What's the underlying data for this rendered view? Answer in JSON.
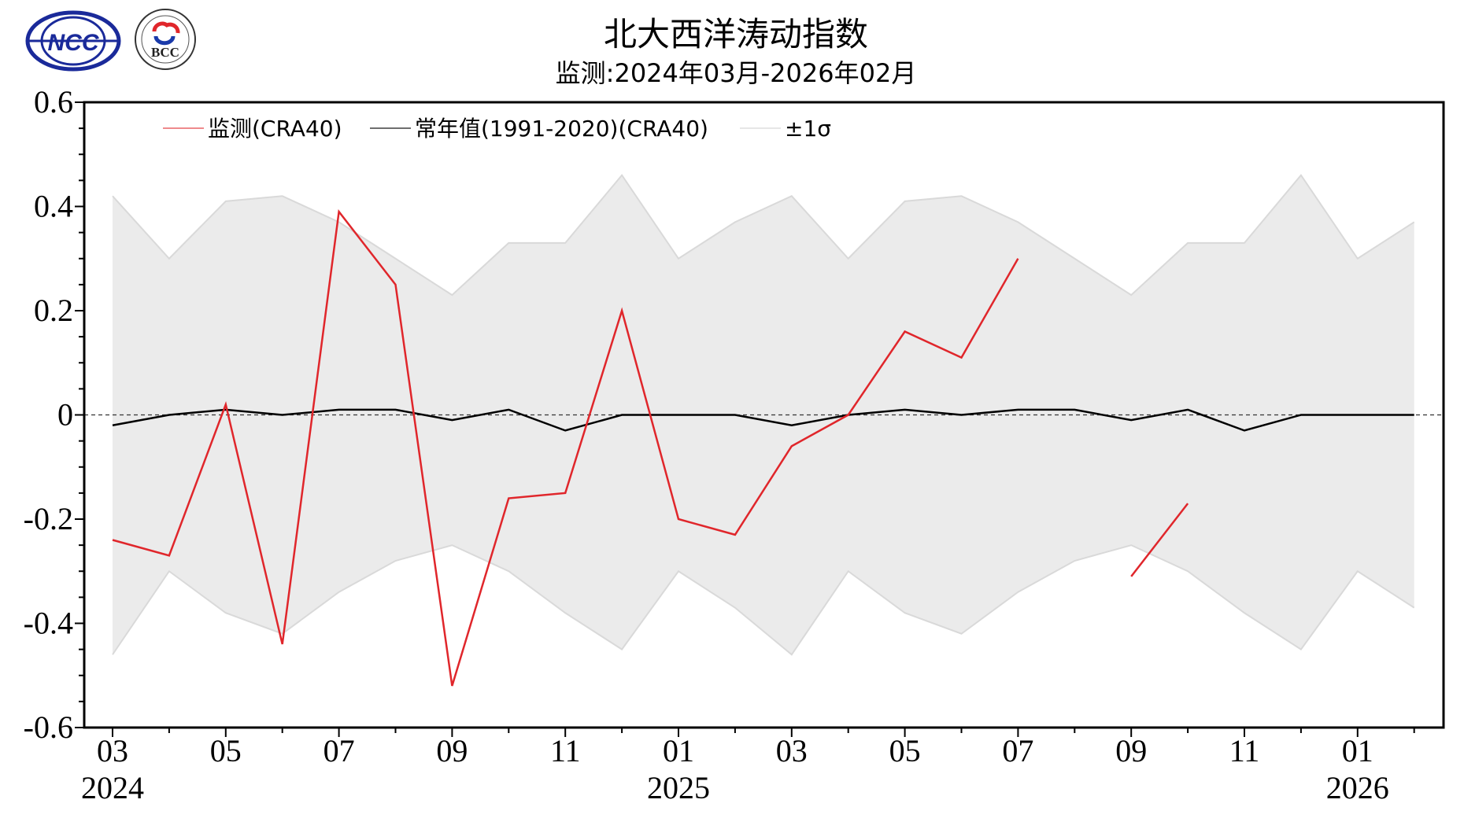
{
  "header": {
    "title": "北大西洋涛动指数",
    "subtitle": "监测:2024年03月-2026年02月",
    "logos": [
      "NCC",
      "BCC"
    ]
  },
  "chart_data": {
    "type": "line",
    "title": "北大西洋涛动指数",
    "subtitle": "监测:2024年03月-2026年02月",
    "xlabel": "",
    "ylabel": "",
    "ylim": [
      -0.6,
      0.6
    ],
    "yticks": [
      "0.6",
      "0.4",
      "0.2",
      "0",
      "-0.2",
      "-0.4",
      "-0.6"
    ],
    "yticks_values": [
      0.6,
      0.4,
      0.2,
      0,
      -0.2,
      -0.4,
      -0.6
    ],
    "x": [
      "2024-03",
      "2024-04",
      "2024-05",
      "2024-06",
      "2024-07",
      "2024-08",
      "2024-09",
      "2024-10",
      "2024-11",
      "2024-12",
      "2025-01",
      "2025-02",
      "2025-03",
      "2025-04",
      "2025-05",
      "2025-06",
      "2025-07",
      "2025-08",
      "2025-09",
      "2025-10",
      "2025-11",
      "2025-12",
      "2026-01",
      "2026-02"
    ],
    "xtick_labels": [
      {
        "i": 0,
        "label": "03",
        "year": "2024"
      },
      {
        "i": 2,
        "label": "05"
      },
      {
        "i": 4,
        "label": "07"
      },
      {
        "i": 6,
        "label": "09"
      },
      {
        "i": 8,
        "label": "11"
      },
      {
        "i": 10,
        "label": "01",
        "year": "2025"
      },
      {
        "i": 12,
        "label": "03"
      },
      {
        "i": 14,
        "label": "05"
      },
      {
        "i": 16,
        "label": "07"
      },
      {
        "i": 18,
        "label": "09"
      },
      {
        "i": 20,
        "label": "11"
      },
      {
        "i": 22,
        "label": "01",
        "year": "2026"
      }
    ],
    "series": [
      {
        "name": "监测(CRA40)",
        "color": "#e0262b",
        "values": [
          -0.24,
          -0.27,
          0.02,
          -0.44,
          0.39,
          0.25,
          -0.52,
          -0.16,
          -0.15,
          0.2,
          -0.2,
          -0.23,
          -0.06,
          0.0,
          0.16,
          0.11,
          0.3,
          null,
          -0.31,
          -0.17,
          null,
          null,
          null,
          null
        ]
      },
      {
        "name": "常年值(1991-2020)(CRA40)",
        "color": "#000000",
        "values": [
          -0.02,
          0.0,
          0.01,
          0.0,
          0.01,
          0.01,
          -0.01,
          0.01,
          -0.03,
          0.0,
          0.0,
          0.0,
          -0.02,
          0.0,
          0.01,
          0.0,
          0.01,
          0.01,
          -0.01,
          0.01,
          -0.03,
          0.0,
          0.0,
          0.0
        ]
      },
      {
        "name": "±1σ",
        "color": "#d9d9d9",
        "upper": [
          0.42,
          0.3,
          0.41,
          0.42,
          0.37,
          0.3,
          0.23,
          0.33,
          0.33,
          0.46,
          0.3,
          0.37,
          0.42,
          0.3,
          0.41,
          0.42,
          0.37,
          0.3,
          0.23,
          0.33,
          0.33,
          0.46,
          0.3,
          0.37
        ],
        "lower": [
          -0.46,
          -0.3,
          -0.38,
          -0.42,
          -0.34,
          -0.28,
          -0.25,
          -0.3,
          -0.38,
          -0.45,
          -0.3,
          -0.37,
          -0.46,
          -0.3,
          -0.38,
          -0.42,
          -0.34,
          -0.28,
          -0.25,
          -0.3,
          -0.38,
          -0.45,
          -0.3,
          -0.37
        ]
      }
    ],
    "zero_line": "dashed",
    "legend": "top-left",
    "grid": false
  }
}
